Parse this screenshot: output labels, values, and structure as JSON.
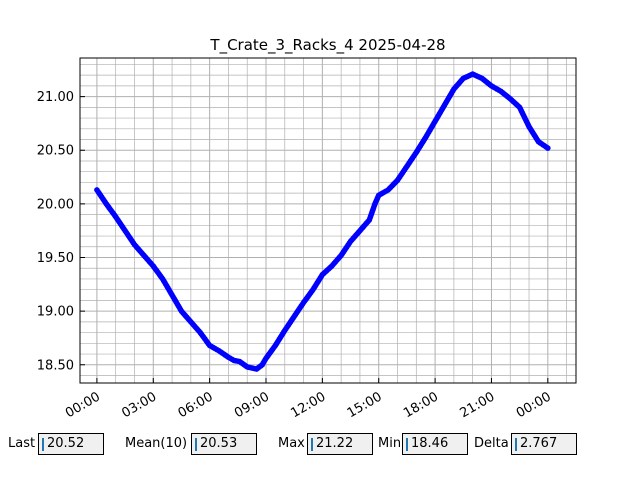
{
  "chart_data": {
    "type": "line",
    "title": "T_Crate_3_Racks_4 2025-04-28",
    "xlabel": "",
    "ylabel": "",
    "x_ticks": [
      "00:00",
      "03:00",
      "06:00",
      "09:00",
      "12:00",
      "15:00",
      "18:00",
      "21:00",
      "00:00"
    ],
    "y_ticks": [
      "18.50",
      "19.00",
      "19.50",
      "20.00",
      "20.50",
      "21.00"
    ],
    "xlim_hours": [
      -0.9,
      25.5
    ],
    "ylim": [
      18.33,
      21.36
    ],
    "grid": true,
    "series": [
      {
        "color": "#0000ff",
        "x_hours": [
          0.0,
          0.5,
          1.0,
          1.5,
          2.0,
          2.5,
          3.0,
          3.5,
          4.0,
          4.5,
          5.0,
          5.5,
          6.0,
          6.5,
          7.0,
          7.3,
          7.6,
          8.0,
          8.5,
          8.8,
          9.0,
          9.5,
          10.0,
          10.5,
          11.0,
          11.5,
          12.0,
          12.5,
          13.0,
          13.5,
          14.0,
          14.5,
          14.8,
          15.0,
          15.5,
          16.0,
          16.5,
          17.0,
          17.5,
          18.0,
          18.5,
          19.0,
          19.5,
          20.0,
          20.5,
          21.0,
          21.5,
          22.0,
          22.5,
          23.0,
          23.5,
          24.0
        ],
        "y": [
          20.13,
          20.0,
          19.88,
          19.75,
          19.62,
          19.52,
          19.42,
          19.3,
          19.15,
          19.0,
          18.9,
          18.8,
          18.68,
          18.63,
          18.57,
          18.54,
          18.53,
          18.48,
          18.46,
          18.5,
          18.56,
          18.68,
          18.82,
          18.95,
          19.08,
          19.2,
          19.34,
          19.42,
          19.52,
          19.65,
          19.75,
          19.85,
          20.0,
          20.08,
          20.13,
          20.22,
          20.35,
          20.48,
          20.62,
          20.77,
          20.92,
          21.07,
          21.17,
          21.21,
          21.17,
          21.1,
          21.05,
          20.98,
          20.9,
          20.72,
          20.58,
          20.52
        ]
      }
    ]
  },
  "stats": {
    "last_label": "Last",
    "last_value": "20.52",
    "mean_label": "Mean(10)",
    "mean_value": "20.53",
    "max_label": "Max",
    "max_value": "21.22",
    "min_label": "Min",
    "min_value": "18.46",
    "delta_label": "Delta",
    "delta_value": "2.767"
  }
}
